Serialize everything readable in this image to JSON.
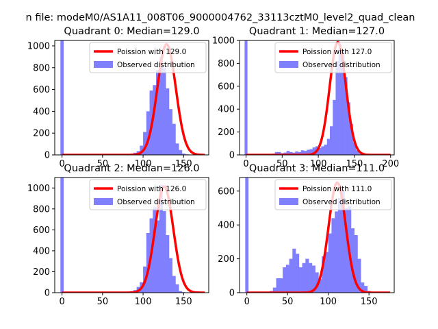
{
  "figure": {
    "suptitle": "n file: modeM0/AS1A11_008T06_9000004762_33113cztM0_level2_quad_clean"
  },
  "colors": {
    "hist": "#8080ff",
    "line": "#ff0000",
    "axis": "#000000",
    "background": "#ffffff"
  },
  "chart_data": [
    {
      "type": "bar",
      "title": "Quadrant 0: Median=129.0",
      "legend": {
        "line": "Poission with 129.0",
        "hist": "Observed distribution",
        "placement": "top-right"
      },
      "xlim": [
        -9,
        181
      ],
      "ylim": [
        0,
        1050
      ],
      "xticks": [
        0,
        50,
        100,
        150
      ],
      "yticks": [
        0,
        200,
        400,
        600,
        800,
        1000
      ],
      "poisson_lambda": 129.0,
      "poisson_peak": 1015,
      "hist_zero": {
        "x": 0,
        "width": 4,
        "value": 1050
      },
      "hist_start": 76,
      "hist_width": 4,
      "hist_values": [
        5,
        10,
        12,
        20,
        35,
        85,
        210,
        400,
        590,
        640,
        780,
        900,
        800,
        610,
        420,
        285,
        105,
        45,
        12,
        5
      ]
    },
    {
      "type": "bar",
      "title": "Quadrant 1: Median=127.0",
      "legend": {
        "line": "Poission with 127.0",
        "hist": "Observed distribution",
        "placement": "top-right"
      },
      "xlim": [
        -9,
        205
      ],
      "ylim": [
        0,
        1000
      ],
      "xticks": [
        0,
        50,
        100,
        150,
        200
      ],
      "yticks": [
        0,
        200,
        400,
        600,
        800,
        1000
      ],
      "poisson_lambda": 127.0,
      "poisson_peak": 985,
      "hist_zero": {
        "x": 0,
        "width": 4,
        "value": 1000
      },
      "hist_start": 28,
      "hist_width": 4,
      "hist_values": [
        5,
        8,
        12,
        25,
        25,
        15,
        20,
        35,
        25,
        20,
        30,
        25,
        40,
        35,
        45,
        50,
        65,
        75,
        60,
        75,
        90,
        140,
        250,
        480,
        820,
        965,
        920,
        680,
        460,
        270,
        110,
        40,
        10,
        5,
        5
      ]
    },
    {
      "type": "bar",
      "title": "Quadrant 2: Median=126.0",
      "legend": {
        "line": "Poission with 126.0",
        "hist": "Observed distribution",
        "placement": "top-right"
      },
      "xlim": [
        -9,
        181
      ],
      "ylim": [
        0,
        1100
      ],
      "xticks": [
        0,
        50,
        100,
        150
      ],
      "yticks": [
        0,
        200,
        400,
        600,
        800,
        1000
      ],
      "poisson_lambda": 126.0,
      "poisson_peak": 1015,
      "hist_zero": {
        "x": 0,
        "width": 4,
        "value": 1100
      },
      "hist_start": 76,
      "hist_width": 4,
      "hist_values": [
        5,
        10,
        15,
        25,
        55,
        100,
        250,
        570,
        710,
        820,
        690,
        1030,
        780,
        550,
        330,
        160,
        80,
        15,
        5
      ]
    },
    {
      "type": "bar",
      "title": "Quadrant 3: Median=111.0",
      "legend": {
        "line": "Poission with 111.0",
        "hist": "Observed distribution",
        "placement": "top-right"
      },
      "xlim": [
        -9,
        181
      ],
      "ylim": [
        0,
        680
      ],
      "xticks": [
        0,
        50,
        100,
        150
      ],
      "yticks": [
        0,
        200,
        400,
        600
      ],
      "poisson_lambda": 111.0,
      "poisson_peak": 650,
      "hist_zero": {
        "x": 0,
        "width": 4,
        "value": 680
      },
      "hist_start": 28,
      "hist_width": 4,
      "hist_values": [
        10,
        30,
        85,
        85,
        150,
        165,
        200,
        260,
        230,
        150,
        175,
        200,
        175,
        160,
        120,
        80,
        215,
        240,
        350,
        440,
        480,
        560,
        600,
        500,
        510,
        380,
        340,
        200,
        60,
        40,
        10,
        5
      ]
    }
  ]
}
